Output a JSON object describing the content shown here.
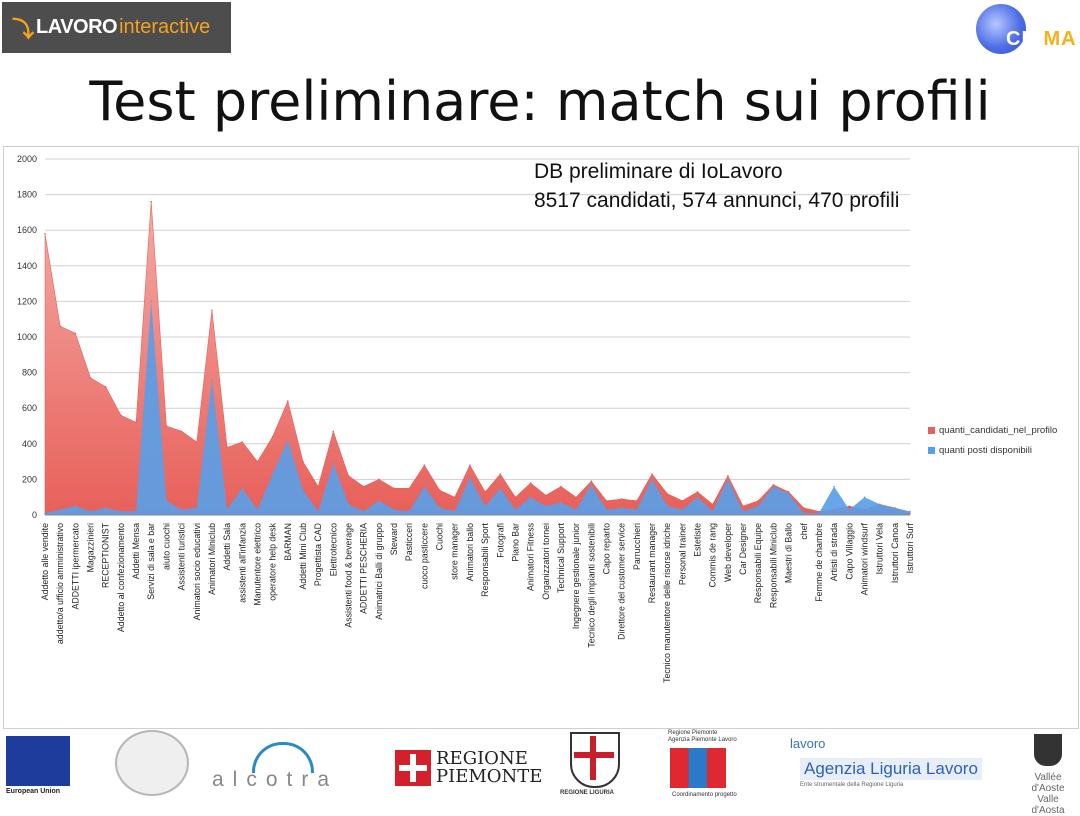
{
  "header": {
    "logo_left": {
      "bold": "LAVORO",
      "light": "interactive",
      "icon": "runner-icon"
    },
    "logo_right": {
      "text_a": "CIR",
      "text_b": "MA",
      "icon": "swirl-icon"
    },
    "title": "Test preliminare: match sui profili"
  },
  "annotation": {
    "line1": "DB preliminare di IoLavoro",
    "line2": "8517 candidati, 574 annunci, 470 profili"
  },
  "colors": {
    "series_candidati": "#e8605a",
    "series_candidati_light": "#f4aaa5",
    "series_posti": "#5a9ee6",
    "grid": "#d0d0d0"
  },
  "chart_data": {
    "type": "area",
    "ylim": [
      0,
      2000
    ],
    "yticks": [
      0,
      200,
      400,
      600,
      800,
      1000,
      1200,
      1400,
      1600,
      1800,
      2000
    ],
    "grid": true,
    "legend_position": "right",
    "categories": [
      "Addetto alle vendite",
      "addetto/a ufficio amministrativo",
      "ADDETTI ipermercato",
      "Magazzinieri",
      "RECEPTIONIST",
      "Addetto al confezionamento",
      "Addetti Mensa",
      "Servizi di sala e bar",
      "aiuto cuochi",
      "Assistenti turistici",
      "Animatori socio educativi",
      "Animatori Miniclub",
      "Addetti Sala",
      "assistenti all'infanzia",
      "Manutentore elettrico",
      "operatore help desk",
      "BARMAN",
      "Addetti Mini Club",
      "Progettista CAD",
      "Elettrotecnico",
      "Assistenti food & beverage",
      "ADDETTI PESCHERIA",
      "Animatrici Balli di gruppo",
      "Steward",
      "Pasticceri",
      "cuoco pasticcere",
      "Cuochi",
      "store manager",
      "Animatori ballo",
      "Responsabili Sport",
      "Fotografi",
      "Piano Bar",
      "Animatori Fitness",
      "Organizzatori tornei",
      "Technical Support",
      "Ingegnere gestionale junior",
      "Tecnico degli impianti sostenibili",
      "Capo reparto",
      "Direttore del customer service",
      "Parrucchieri",
      "Restaurant manager",
      "Tecnico manutentore delle risorse idriche",
      "Personal trainer",
      "Estetiste",
      "Commis de rang",
      "Web developer",
      "Car Designer",
      "Responsabili Equipe",
      "Responsabili Miniclub",
      "Maestri di Ballo",
      "chef",
      "Femme de chambre",
      "Artisti di strada",
      "Capo Villaggio",
      "Animatori windsurf",
      "Istruttori Vela",
      "Istruttori Canoa",
      "Istruttori Surf"
    ],
    "series": [
      {
        "name": "quanti_candidati_nel_profilo",
        "values": [
          1580,
          1060,
          1020,
          770,
          720,
          560,
          520,
          1760,
          500,
          470,
          410,
          1150,
          380,
          410,
          300,
          440,
          640,
          300,
          160,
          470,
          220,
          160,
          200,
          150,
          150,
          280,
          140,
          100,
          280,
          130,
          230,
          100,
          180,
          110,
          160,
          100,
          190,
          80,
          90,
          80,
          230,
          120,
          80,
          130,
          60,
          220,
          50,
          80,
          170,
          130,
          40,
          20,
          30,
          50,
          30,
          60,
          40,
          10
        ]
      },
      {
        "name": "quanti posti disponibili",
        "values": [
          10,
          30,
          50,
          20,
          40,
          20,
          20,
          1200,
          80,
          30,
          40,
          760,
          30,
          150,
          30,
          230,
          420,
          140,
          20,
          290,
          60,
          20,
          80,
          30,
          20,
          160,
          40,
          20,
          210,
          50,
          150,
          30,
          100,
          50,
          70,
          30,
          170,
          30,
          40,
          30,
          200,
          50,
          30,
          100,
          20,
          200,
          20,
          50,
          160,
          120,
          10,
          10,
          160,
          30,
          100,
          60,
          40,
          20
        ]
      }
    ]
  },
  "footer": {
    "eu": "European Union",
    "alcotra": "alcotra",
    "piemonte_line1": "REGIONE",
    "piemonte_line2": "PIEMONTE",
    "liguria": "REGIONE LIGURIA",
    "apl_line1": "Regione Piemonte",
    "apl_line2": "Agenzia Piemonte Lavoro",
    "apl_foot": "Coordinamento progetto",
    "ligurialavoro_small": "lavoro",
    "ligurialavoro_big": "Agenzia Liguria Lavoro",
    "ligurialavoro_tag": "Ente strumentale della Regione Liguria",
    "vda_line1": "Vallée d'Aoste",
    "vda_line2": "Valle d'Aosta"
  }
}
